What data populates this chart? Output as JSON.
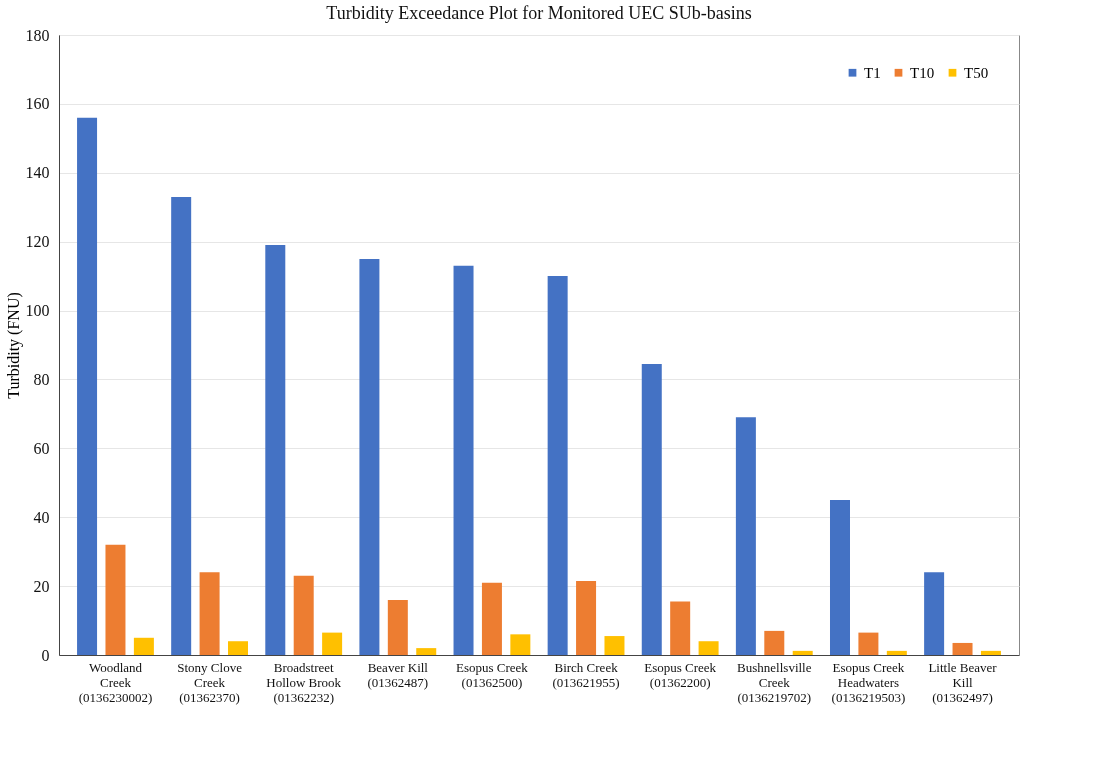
{
  "chart_data": {
    "type": "bar",
    "title": "Turbidity Exceedance Plot for Monitored UEC SUb-basins",
    "ylabel": "Turbidity (FNU)",
    "categories": [
      "Woodland\nCreek\n(0136230002)",
      "Stony Clove\nCreek\n(01362370)",
      "Broadstreet\nHollow Brook\n(01362232)",
      "Beaver Kill\n(01362487)",
      "Esopus Creek\n(01362500)",
      "Birch Creek\n(013621955)",
      "Esopus Creek\n(01362200)",
      "Bushnellsville\nCreek\n(0136219702)",
      "Esopus Creek\nHeadwaters\n(0136219503)",
      "Little Beaver\nKill\n(01362497)"
    ],
    "series": [
      {
        "name": "T1",
        "color": "#4472c4",
        "values": [
          156,
          133,
          119,
          115,
          113,
          110,
          84.5,
          69,
          45,
          24
        ]
      },
      {
        "name": "T10",
        "color": "#ed7d31",
        "values": [
          32,
          24,
          23,
          16,
          21,
          21.5,
          15.5,
          7,
          6.5,
          3.5
        ]
      },
      {
        "name": "T50",
        "color": "#ffc000",
        "values": [
          5,
          4,
          6.5,
          2,
          6,
          5.5,
          4,
          1.2,
          1.2,
          1.2
        ]
      }
    ],
    "ylim": [
      0,
      180
    ],
    "yticks": [
      0,
      20,
      40,
      60,
      80,
      100,
      120,
      140,
      160,
      180
    ],
    "grid": "y",
    "legend": "top right"
  }
}
